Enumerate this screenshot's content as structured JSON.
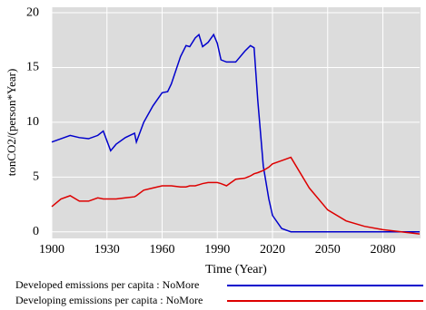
{
  "chart_data": {
    "type": "line",
    "y_label": "tonCO2/(person*Year)",
    "x_label": "Time (Year)",
    "x": [
      1900,
      1905,
      1910,
      1915,
      1920,
      1925,
      1928,
      1932,
      1935,
      1940,
      1945,
      1946,
      1950,
      1955,
      1960,
      1963,
      1965,
      1970,
      1973,
      1975,
      1978,
      1980,
      1982,
      1985,
      1988,
      1990,
      1992,
      1995,
      2000,
      2005,
      2008,
      2010,
      2012,
      2015,
      2018,
      2020,
      2025,
      2030,
      2040,
      2050,
      2060,
      2070,
      2080,
      2090,
      2100
    ],
    "series": [
      {
        "name": "Developed emissions per capita : NoMore",
        "color": "#0000cc",
        "values": [
          8.2,
          8.5,
          8.8,
          8.6,
          8.5,
          8.8,
          9.2,
          7.4,
          8.0,
          8.6,
          9.0,
          8.2,
          10.0,
          11.5,
          12.7,
          12.8,
          13.5,
          16.0,
          17.0,
          16.9,
          17.7,
          18.0,
          16.9,
          17.3,
          18.0,
          17.2,
          15.7,
          15.5,
          15.5,
          16.5,
          17.0,
          16.8,
          12.0,
          6.0,
          3.0,
          1.5,
          0.3,
          0,
          0,
          0,
          0,
          0,
          0,
          0,
          0
        ]
      },
      {
        "name": "Developing emissions per capita : NoMore",
        "color": "#dd0000",
        "values": [
          2.3,
          3.0,
          3.3,
          2.8,
          2.8,
          3.1,
          3.0,
          3.0,
          3.0,
          3.1,
          3.2,
          3.3,
          3.8,
          4.0,
          4.2,
          4.2,
          4.2,
          4.1,
          4.1,
          4.2,
          4.2,
          4.3,
          4.4,
          4.5,
          4.5,
          4.5,
          4.4,
          4.2,
          4.8,
          4.9,
          5.1,
          5.3,
          5.4,
          5.6,
          5.9,
          6.2,
          6.5,
          6.8,
          4.0,
          2.0,
          1.0,
          0.5,
          0.2,
          0.0,
          -0.2
        ]
      }
    ],
    "xlim": [
      1900,
      2100
    ],
    "xticks": [
      1900,
      1930,
      1960,
      1990,
      2020,
      2050,
      2080
    ],
    "ylim": [
      -0.6,
      20.5
    ],
    "yticks": [
      0,
      5,
      10,
      15,
      20
    ],
    "grid": true
  }
}
